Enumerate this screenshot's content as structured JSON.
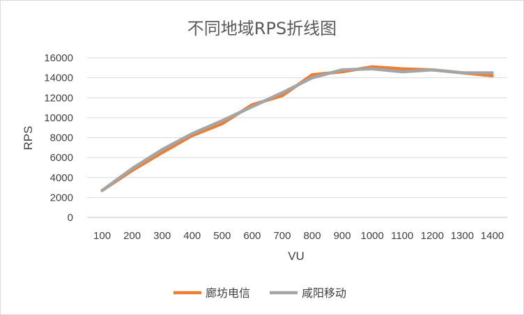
{
  "chart_data": {
    "type": "line",
    "title": "不同地域RPS折线图",
    "xlabel": "VU",
    "ylabel": "RPS",
    "ylim": [
      0,
      16000
    ],
    "yticks": [
      0,
      2000,
      4000,
      6000,
      8000,
      10000,
      12000,
      14000,
      16000
    ],
    "grid": true,
    "legend_position": "bottom",
    "categories": [
      "100",
      "200",
      "300",
      "400",
      "500",
      "600",
      "700",
      "800",
      "900",
      "1000",
      "1100",
      "1200",
      "1300",
      "1400"
    ],
    "series": [
      {
        "name": "廊坊电信",
        "color": "#ed7d31",
        "values": [
          2700,
          4700,
          6500,
          8200,
          9400,
          11300,
          12200,
          14300,
          14600,
          15100,
          14900,
          14800,
          14500,
          14200
        ]
      },
      {
        "name": "咸阳移动",
        "color": "#a5a5a5",
        "values": [
          2700,
          4900,
          6800,
          8400,
          9700,
          11100,
          12500,
          14000,
          14800,
          14900,
          14600,
          14800,
          14500,
          14500
        ]
      }
    ]
  }
}
